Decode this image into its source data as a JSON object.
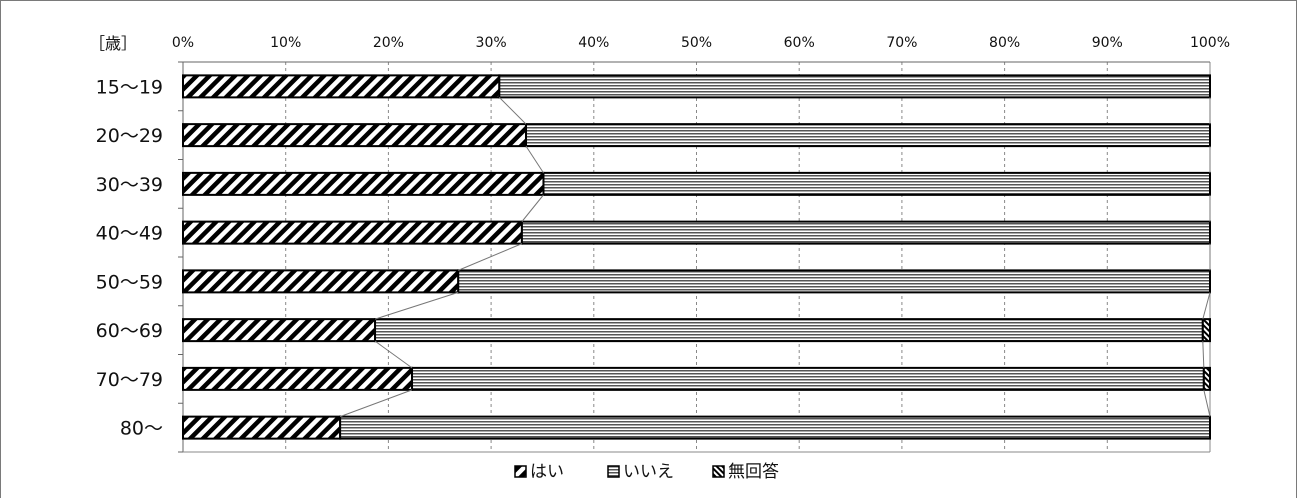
{
  "chart_data": {
    "type": "bar",
    "orientation": "horizontal",
    "stacked": "percent",
    "unit_label": "［歳］",
    "x_ticks": [
      "0%",
      "10%",
      "20%",
      "30%",
      "40%",
      "50%",
      "60%",
      "70%",
      "80%",
      "90%",
      "100%"
    ],
    "xlim": [
      0,
      100
    ],
    "categories": [
      "15～19",
      "20～29",
      "30～39",
      "40～49",
      "50～59",
      "60～69",
      "70～79",
      "80～"
    ],
    "series": [
      {
        "name": "はい",
        "values": [
          30.8,
          33.4,
          35.1,
          33.0,
          26.8,
          18.7,
          22.3,
          15.3
        ]
      },
      {
        "name": "いいえ",
        "values": [
          69.2,
          66.6,
          64.9,
          67.0,
          73.2,
          80.6,
          77.1,
          84.7
        ]
      },
      {
        "name": "無回答",
        "values": [
          0.0,
          0.0,
          0.0,
          0.0,
          0.0,
          0.7,
          0.6,
          0.0
        ]
      }
    ],
    "grid": true,
    "legend_position": "bottom-center",
    "colors": {
      "bar_stroke": "#000000",
      "grid": "#888888",
      "series_line": "#777777"
    }
  }
}
